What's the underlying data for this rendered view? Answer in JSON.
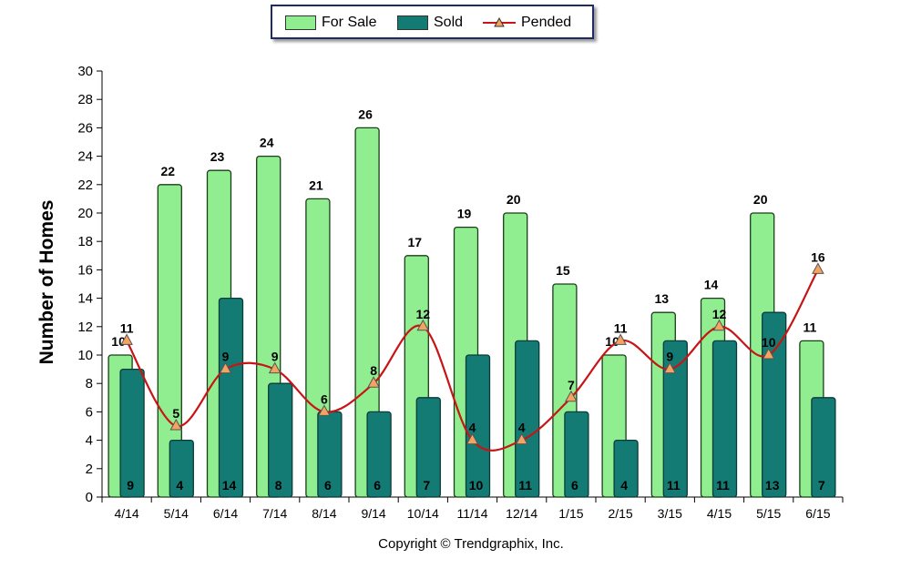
{
  "chart_data": {
    "type": "bar",
    "categories": [
      "4/14",
      "5/14",
      "6/14",
      "7/14",
      "8/14",
      "9/14",
      "10/14",
      "11/14",
      "12/14",
      "1/15",
      "2/15",
      "3/15",
      "4/15",
      "5/15",
      "6/15"
    ],
    "series": [
      {
        "name": "For Sale",
        "type": "bar",
        "values": [
          10,
          22,
          23,
          24,
          21,
          26,
          17,
          19,
          20,
          15,
          10,
          13,
          14,
          20,
          11
        ],
        "color": "#90ee90"
      },
      {
        "name": "Sold",
        "type": "bar",
        "values": [
          9,
          4,
          14,
          8,
          6,
          6,
          7,
          10,
          11,
          6,
          4,
          11,
          11,
          13,
          7
        ],
        "color": "#137b74"
      },
      {
        "name": "Pended",
        "type": "line",
        "values": [
          11,
          5,
          9,
          9,
          6,
          8,
          12,
          4,
          4,
          7,
          11,
          9,
          12,
          10,
          16
        ],
        "color": "#c81414"
      }
    ],
    "ylabel": "Number of Homes",
    "xlabel": "",
    "ylim": [
      0,
      30
    ],
    "yticks": [
      "0",
      "2",
      "4",
      "6",
      "8",
      "10",
      "12",
      "14",
      "16",
      "18",
      "20",
      "22",
      "24",
      "26",
      "28",
      "30"
    ],
    "legend_position": "top-center",
    "grid": false
  },
  "legend": {
    "for_sale": "For Sale",
    "sold": "Sold",
    "pended": "Pended"
  },
  "footer": {
    "copyright": "Copyright © Trendgraphix, Inc."
  },
  "colors": {
    "for_sale_fill": "#90ee90",
    "for_sale_stroke": "#1a3d1a",
    "sold_fill": "#137b74",
    "sold_stroke": "#0a3b38",
    "pended_line": "#c81414",
    "pended_marker": "#f4a460"
  }
}
